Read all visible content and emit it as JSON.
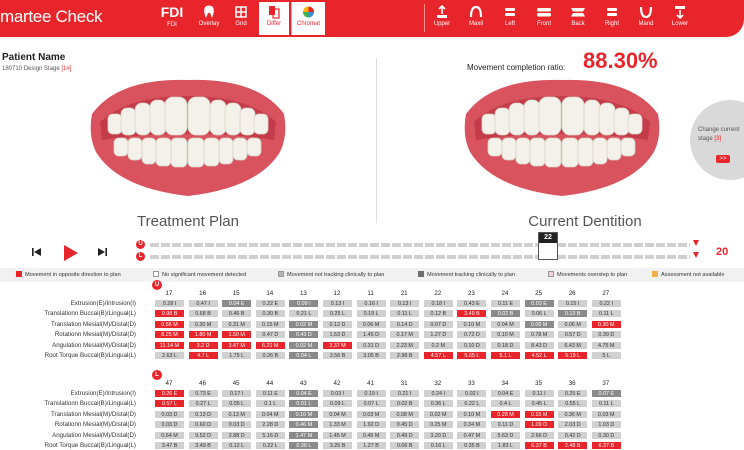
{
  "app": {
    "brand": "martee Check",
    "numbering": {
      "label": "FDI",
      "sub": "FDI"
    },
    "left_tools": [
      {
        "label": "Overlay",
        "icon": "tooth-icon"
      },
      {
        "label": "Grid",
        "icon": "grid-icon"
      },
      {
        "label": "Differ",
        "icon": "differ-icon",
        "active": true
      },
      {
        "label": "Chromat",
        "icon": "chromat-icon"
      }
    ],
    "view_tools": [
      {
        "label": "Upper",
        "icon": "upper-view-icon"
      },
      {
        "label": "Maxil",
        "icon": "maxil-view-icon"
      },
      {
        "label": "Left",
        "icon": "left-view-icon"
      },
      {
        "label": "Front",
        "icon": "front-view-icon"
      },
      {
        "label": "Back",
        "icon": "back-view-icon"
      },
      {
        "label": "Right",
        "icon": "right-view-icon"
      },
      {
        "label": "Mand",
        "icon": "mand-view-icon"
      },
      {
        "label": "Lower",
        "icon": "lower-view-icon"
      }
    ],
    "colors": {
      "accent": "#e8252b"
    }
  },
  "patient": {
    "name_label": "Patient Name",
    "stage_prefix": "180710 Design Stage ",
    "stage_value": "[1#]"
  },
  "movement": {
    "label": "Movement completion ratio:",
    "value": "88.30%"
  },
  "views": {
    "left_caption": "Treatment Plan",
    "right_caption": "Current Dentition"
  },
  "change_stage": {
    "text_line1": "Change current",
    "text_line2_prefix": "stage ",
    "text_line2_value": "[3]",
    "button": ">>"
  },
  "playback": {
    "upper_badge": "U",
    "lower_badge": "L",
    "current_stage": "22",
    "total_stages": "20"
  },
  "legend": [
    {
      "label": "Movement in opposite direction to plan",
      "color": "#e8252b"
    },
    {
      "label": "No significant movement detected",
      "color": "#ffffff"
    },
    {
      "label": "Movement not tracking clinically to plan",
      "color": "#b5b5b5"
    },
    {
      "label": "Movement tracking clinically to plan",
      "color": "#6f6f6f"
    },
    {
      "label": "Movements overstep to plan",
      "color": "#f3d2d2"
    },
    {
      "label": "Assessment not available",
      "color": "#f0b14a"
    }
  ],
  "row_labels": [
    "Extrusion(E)/Intrusion(I)",
    "Translationn Buccal(B)/Lingual(L)",
    "Translation Mesial(M)/Distal(D)",
    "Rotationn Mesial(M)/Distal(D)",
    "Angulation Mesial(M)/Distal(D)",
    "Root Torque Buccal(B)/Lingual(L)"
  ],
  "upper": {
    "badge": "U",
    "teeth": [
      "17",
      "16",
      "15",
      "14",
      "13",
      "12",
      "11",
      "21",
      "22",
      "23",
      "24",
      "25",
      "26",
      "27"
    ],
    "rows": [
      [
        [
          "0.28 I",
          "g"
        ],
        [
          "0.47 I",
          "g"
        ],
        [
          "0.04 E",
          "d"
        ],
        [
          "0.22 E",
          "g"
        ],
        [
          "0.09 I",
          "d"
        ],
        [
          "0.13 I",
          "g"
        ],
        [
          "0.16 I",
          "g"
        ],
        [
          "0.13 I",
          "g"
        ],
        [
          "0.18 I",
          "g"
        ],
        [
          "0.43 E",
          "g"
        ],
        [
          "0.11 E",
          "g"
        ],
        [
          "0.03 E",
          "d"
        ],
        [
          "0.15 I",
          "g"
        ],
        [
          "0.22 I",
          "g"
        ]
      ],
      [
        [
          "0.98 B",
          "r"
        ],
        [
          "0.68 B",
          "g"
        ],
        [
          "0.46 B",
          "g"
        ],
        [
          "0.30 B",
          "g"
        ],
        [
          "0.21 L",
          "g"
        ],
        [
          "0.25 L",
          "g"
        ],
        [
          "0.19 L",
          "g"
        ],
        [
          "0.11 L",
          "g"
        ],
        [
          "0.12 B",
          "g"
        ],
        [
          "3.49 B",
          "r"
        ],
        [
          "0.02 B",
          "d"
        ],
        [
          "0.06 L",
          "g"
        ],
        [
          "0.13 B",
          "d"
        ],
        [
          "0.11 L",
          "g"
        ]
      ],
      [
        [
          "0.56 M",
          "r"
        ],
        [
          "0.30 M",
          "g"
        ],
        [
          "0.31 M",
          "g"
        ],
        [
          "0.15 M",
          "g"
        ],
        [
          "0.02 M",
          "d"
        ],
        [
          "0.12 D",
          "g"
        ],
        [
          "0.06 M",
          "g"
        ],
        [
          "0.14 D",
          "g"
        ],
        [
          "0.07 D",
          "g"
        ],
        [
          "0.10 M",
          "g"
        ],
        [
          "0.04 M",
          "g"
        ],
        [
          "0.06 M",
          "d"
        ],
        [
          "0.06 M",
          "g"
        ],
        [
          "0.30 M",
          "r"
        ]
      ],
      [
        [
          "8.25 M",
          "r"
        ],
        [
          "1.80 M",
          "r"
        ],
        [
          "1.50 M",
          "r"
        ],
        [
          "0.47 D",
          "g"
        ],
        [
          "0.43 D",
          "d"
        ],
        [
          "1.53 D",
          "g"
        ],
        [
          "1.45 D",
          "g"
        ],
        [
          "0.17 M",
          "g"
        ],
        [
          "1.27 D",
          "g"
        ],
        [
          "0.72 D",
          "g"
        ],
        [
          "0.10 M",
          "g"
        ],
        [
          "0.78 M",
          "g"
        ],
        [
          "0.57 D",
          "g"
        ],
        [
          "0.39 D",
          "g"
        ]
      ],
      [
        [
          "11.14 M",
          "r"
        ],
        [
          "3.2 D",
          "r"
        ],
        [
          "3.47 M",
          "r"
        ],
        [
          "6.21 M",
          "r"
        ],
        [
          "0.02 M",
          "d"
        ],
        [
          "3.37 M",
          "r"
        ],
        [
          "0.31 D",
          "g"
        ],
        [
          "2.23 M",
          "g"
        ],
        [
          "0.2 M",
          "g"
        ],
        [
          "0.10 D",
          "g"
        ],
        [
          "0.18 D",
          "g"
        ],
        [
          "8.43 D",
          "g"
        ],
        [
          "6.43 M",
          "g"
        ],
        [
          "4.75 M",
          "g"
        ]
      ],
      [
        [
          "2.63 L",
          "g"
        ],
        [
          "4.7 L",
          "r"
        ],
        [
          "1.75 L",
          "g"
        ],
        [
          "0.26 B",
          "g"
        ],
        [
          "0.04 L",
          "d"
        ],
        [
          "3.56 B",
          "g"
        ],
        [
          "3.05 B",
          "g"
        ],
        [
          "2.98 B",
          "g"
        ],
        [
          "4.57 L",
          "r"
        ],
        [
          "5.65 L",
          "r"
        ],
        [
          "5.1 L",
          "r"
        ],
        [
          "4.52 L",
          "r"
        ],
        [
          "5.19 L",
          "r"
        ],
        [
          "5 L",
          "g"
        ]
      ]
    ]
  },
  "lower": {
    "badge": "L",
    "teeth": [
      "47",
      "46",
      "45",
      "44",
      "43",
      "42",
      "41",
      "31",
      "32",
      "33",
      "34",
      "35",
      "36",
      "37"
    ],
    "rows": [
      [
        [
          "0.26 E",
          "r"
        ],
        [
          "0.73 E",
          "g"
        ],
        [
          "0.17 I",
          "g"
        ],
        [
          "0.11 E",
          "g"
        ],
        [
          "0.04 E",
          "d"
        ],
        [
          "0.03 I",
          "g"
        ],
        [
          "0.19 I",
          "g"
        ],
        [
          "0.21 I",
          "g"
        ],
        [
          "0.24 I",
          "g"
        ],
        [
          "0.02 I",
          "g"
        ],
        [
          "0.04 E",
          "g"
        ],
        [
          "0.11 I",
          "g"
        ],
        [
          "0.25 E",
          "g"
        ],
        [
          "0.07 E",
          "d"
        ]
      ],
      [
        [
          "0.57 L",
          "r"
        ],
        [
          "0.27 L",
          "g"
        ],
        [
          "0.05 L",
          "g"
        ],
        [
          "0.1 L",
          "g"
        ],
        [
          "0.01 L",
          "d"
        ],
        [
          "0.09 L",
          "g"
        ],
        [
          "0.07 L",
          "g"
        ],
        [
          "0.02 B",
          "g"
        ],
        [
          "0.36 L",
          "g"
        ],
        [
          "0.22 L",
          "g"
        ],
        [
          "0.4 L",
          "g"
        ],
        [
          "0.45 L",
          "g"
        ],
        [
          "0.55 L",
          "g"
        ],
        [
          "0.11 L",
          "g"
        ]
      ],
      [
        [
          "0.03 D",
          "g"
        ],
        [
          "0.13 D",
          "g"
        ],
        [
          "0.13 M",
          "g"
        ],
        [
          "0.04 M",
          "g"
        ],
        [
          "0.10 M",
          "d"
        ],
        [
          "0.04 M",
          "g"
        ],
        [
          "0.03 M",
          "g"
        ],
        [
          "0.08 M",
          "g"
        ],
        [
          "0.02 M",
          "g"
        ],
        [
          "0.10 M",
          "g"
        ],
        [
          "0.28 M",
          "r"
        ],
        [
          "0.15 M",
          "r"
        ],
        [
          "0.36 M",
          "g"
        ],
        [
          "0.03 M",
          "g"
        ]
      ],
      [
        [
          "0.03 D",
          "g"
        ],
        [
          "0.60 D",
          "g"
        ],
        [
          "0.03 D",
          "g"
        ],
        [
          "2.28 D",
          "g"
        ],
        [
          "0.46 M",
          "d"
        ],
        [
          "1.33 M",
          "g"
        ],
        [
          "1.92 D",
          "g"
        ],
        [
          "0.45 D",
          "g"
        ],
        [
          "0.25 M",
          "g"
        ],
        [
          "0.34 M",
          "g"
        ],
        [
          "0.11 D",
          "g"
        ],
        [
          "1.09 D",
          "r"
        ],
        [
          "2.03 D",
          "g"
        ],
        [
          "1.03 D",
          "g"
        ]
      ],
      [
        [
          "0.64 M",
          "g"
        ],
        [
          "9.52 D",
          "g"
        ],
        [
          "2.88 D",
          "g"
        ],
        [
          "5.16 D",
          "g"
        ],
        [
          "1.47 M",
          "d"
        ],
        [
          "1.45 M",
          "g"
        ],
        [
          "0.45 M",
          "g"
        ],
        [
          "0.49 D",
          "g"
        ],
        [
          "3.20 D",
          "g"
        ],
        [
          "0.47 M",
          "g"
        ],
        [
          "5.63 D",
          "g"
        ],
        [
          "2.66 D",
          "g"
        ],
        [
          "0.42 D",
          "g"
        ],
        [
          "0.30 D",
          "g"
        ]
      ],
      [
        [
          "3.47 B",
          "g"
        ],
        [
          "3.49 B",
          "g"
        ],
        [
          "0.12 L",
          "g"
        ],
        [
          "0.22 L",
          "g"
        ],
        [
          "0.38 L",
          "d"
        ],
        [
          "3.25 B",
          "g"
        ],
        [
          "1.27 B",
          "g"
        ],
        [
          "0.06 B",
          "g"
        ],
        [
          "0.16 L",
          "g"
        ],
        [
          "0.35 B",
          "g"
        ],
        [
          "1.83 L",
          "g"
        ],
        [
          "6.37 B",
          "r"
        ],
        [
          "2.48 B",
          "r"
        ],
        [
          "6.37 B",
          "r"
        ]
      ]
    ]
  }
}
